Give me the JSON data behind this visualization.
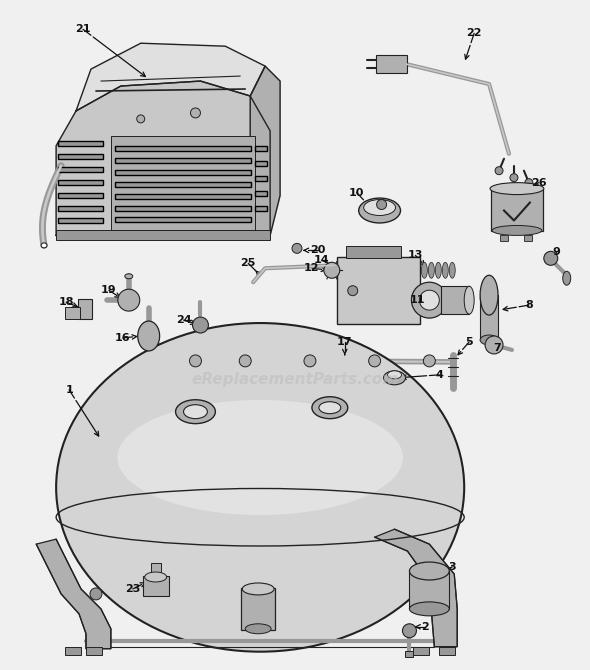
{
  "bg_color": "#f0f0f0",
  "line_color": "#222222",
  "watermark_text": "eReplacementParts.com",
  "watermark_color": "#bbbbbb",
  "watermark_alpha": 0.55,
  "fig_w": 5.9,
  "fig_h": 6.7,
  "dpi": 100
}
